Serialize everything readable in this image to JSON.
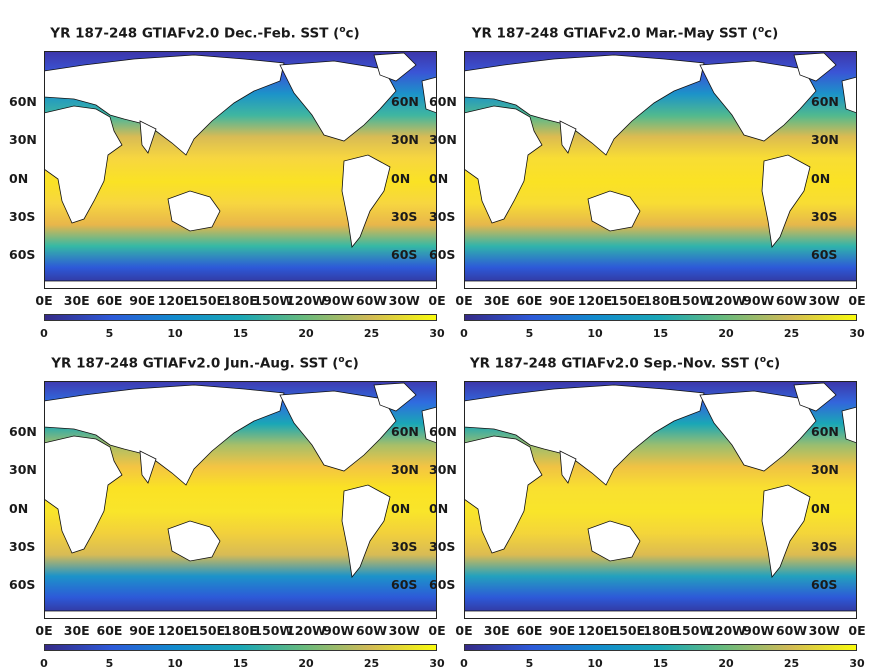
{
  "panels": [
    {
      "title_prefix": "YR 187-248 GTIAFv2.0 Dec.-Feb. SST (",
      "title_sup": "o",
      "title_suffix": "c)",
      "season": "DJF",
      "cbar_max_color": "#f9fb0e"
    },
    {
      "title_prefix": "YR 187-248 GTIAFv2.0 Mar.-May SST (",
      "title_sup": "o",
      "title_suffix": "c)",
      "season": "MAM",
      "cbar_max_color": "#f9fb0e"
    },
    {
      "title_prefix": "YR 187-248 GTIAFv2.0 Jun.-Aug. SST (",
      "title_sup": "o",
      "title_suffix": "c)",
      "season": "JJA",
      "cbar_max_color": "#f9fb0e"
    },
    {
      "title_prefix": "YR 187-248 GTIAFv2.0 Sep.-Nov. SST (",
      "title_sup": "o",
      "title_suffix": "c)",
      "season": "SON",
      "cbar_max_color": "#f9fb0e"
    }
  ],
  "lat_labels": [
    "60N",
    "30N",
    "0N",
    "30S",
    "60S"
  ],
  "lon_labels": [
    "0E",
    "30E",
    "60E",
    "90E",
    "120E",
    "150E",
    "180E",
    "150W",
    "120W",
    "90W",
    "60W",
    "30W",
    "0E"
  ],
  "colorbar": {
    "ticks": [
      "0",
      "5",
      "10",
      "15",
      "20",
      "25",
      "30"
    ],
    "min": 0,
    "max": 30,
    "colormap": "parula"
  },
  "colors": {
    "cold": "#352a87",
    "cool": "#2d59d8",
    "mid": "#1aa7b6",
    "warm": "#d1ba56",
    "hot": "#f9fb0e",
    "land": "#ffffff"
  }
}
